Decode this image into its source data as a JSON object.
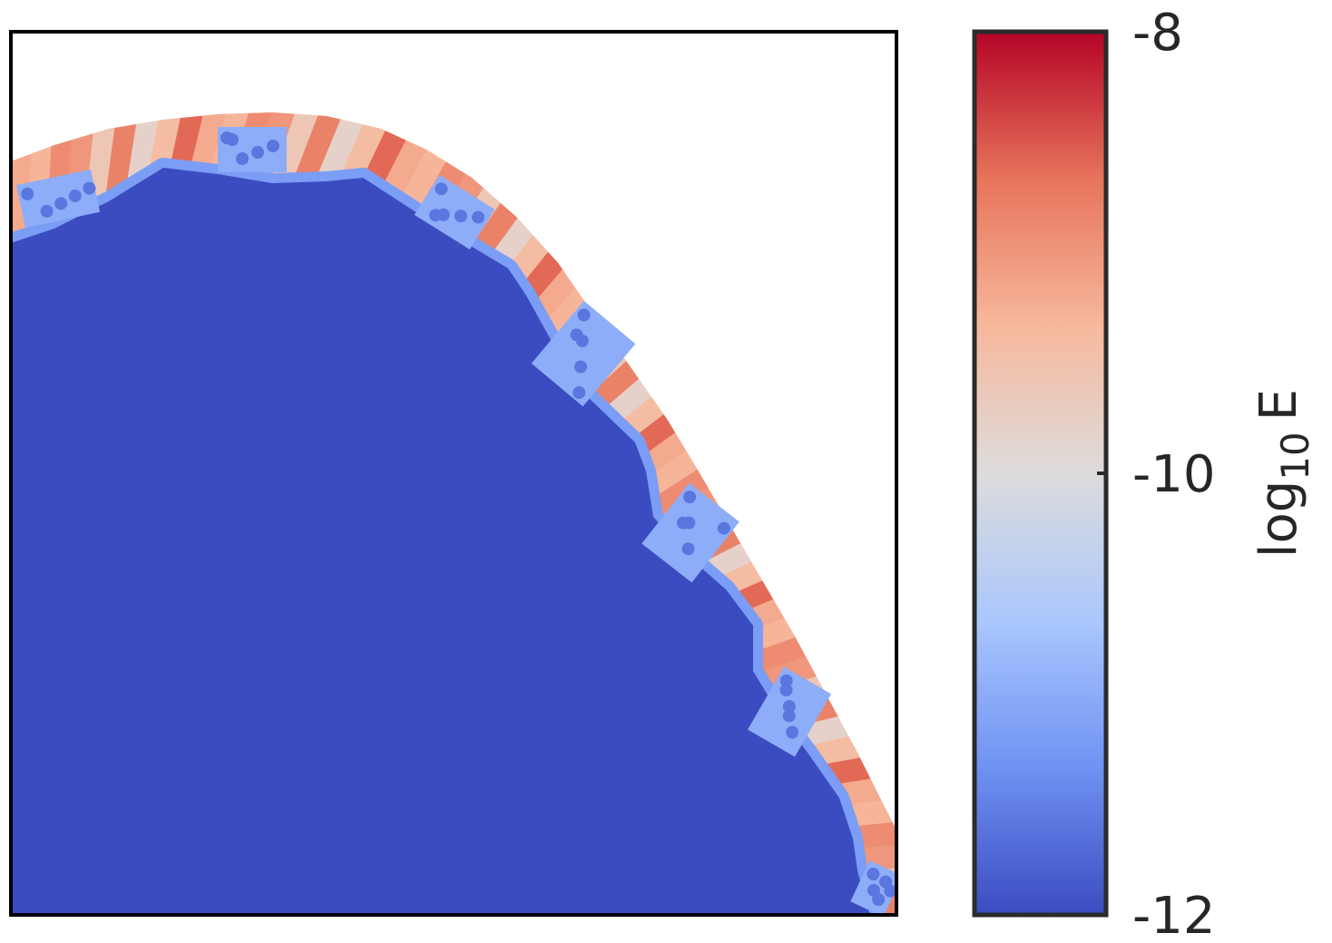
{
  "chart_data": {
    "type": "heatmap",
    "title": "",
    "xlabel": "",
    "ylabel": "",
    "colormap": "coolwarm",
    "colors": {
      "background_region": "#3b4cc0",
      "outside_region": "#ffffff",
      "frame": "#000000",
      "colorbar_frame": "#2b2b2b",
      "colormap_stops": [
        "#3b4cc0",
        "#6f92f3",
        "#aac7fd",
        "#dddcdc",
        "#f7b89c",
        "#e7745b",
        "#b40426"
      ]
    },
    "colorbar": {
      "label_base": "log",
      "label_sub": "10",
      "label_var": "E",
      "min": -12,
      "max": -8,
      "ticks": [
        {
          "value": -8,
          "label": "-8"
        },
        {
          "value": -10,
          "label": "-10"
        },
        {
          "value": -12,
          "label": "-12"
        }
      ]
    },
    "field": {
      "interior_value": -12,
      "boundary_band_values": [
        -9.2,
        -8.8,
        -9.6,
        -9.0,
        -8.6,
        -9.4,
        -9.8,
        -8.9,
        -9.3
      ],
      "defect_cluster_value": -11.6,
      "defect_cluster_count": 8
    },
    "axes": {
      "xticks": [],
      "yticks": [],
      "grid": false
    }
  }
}
